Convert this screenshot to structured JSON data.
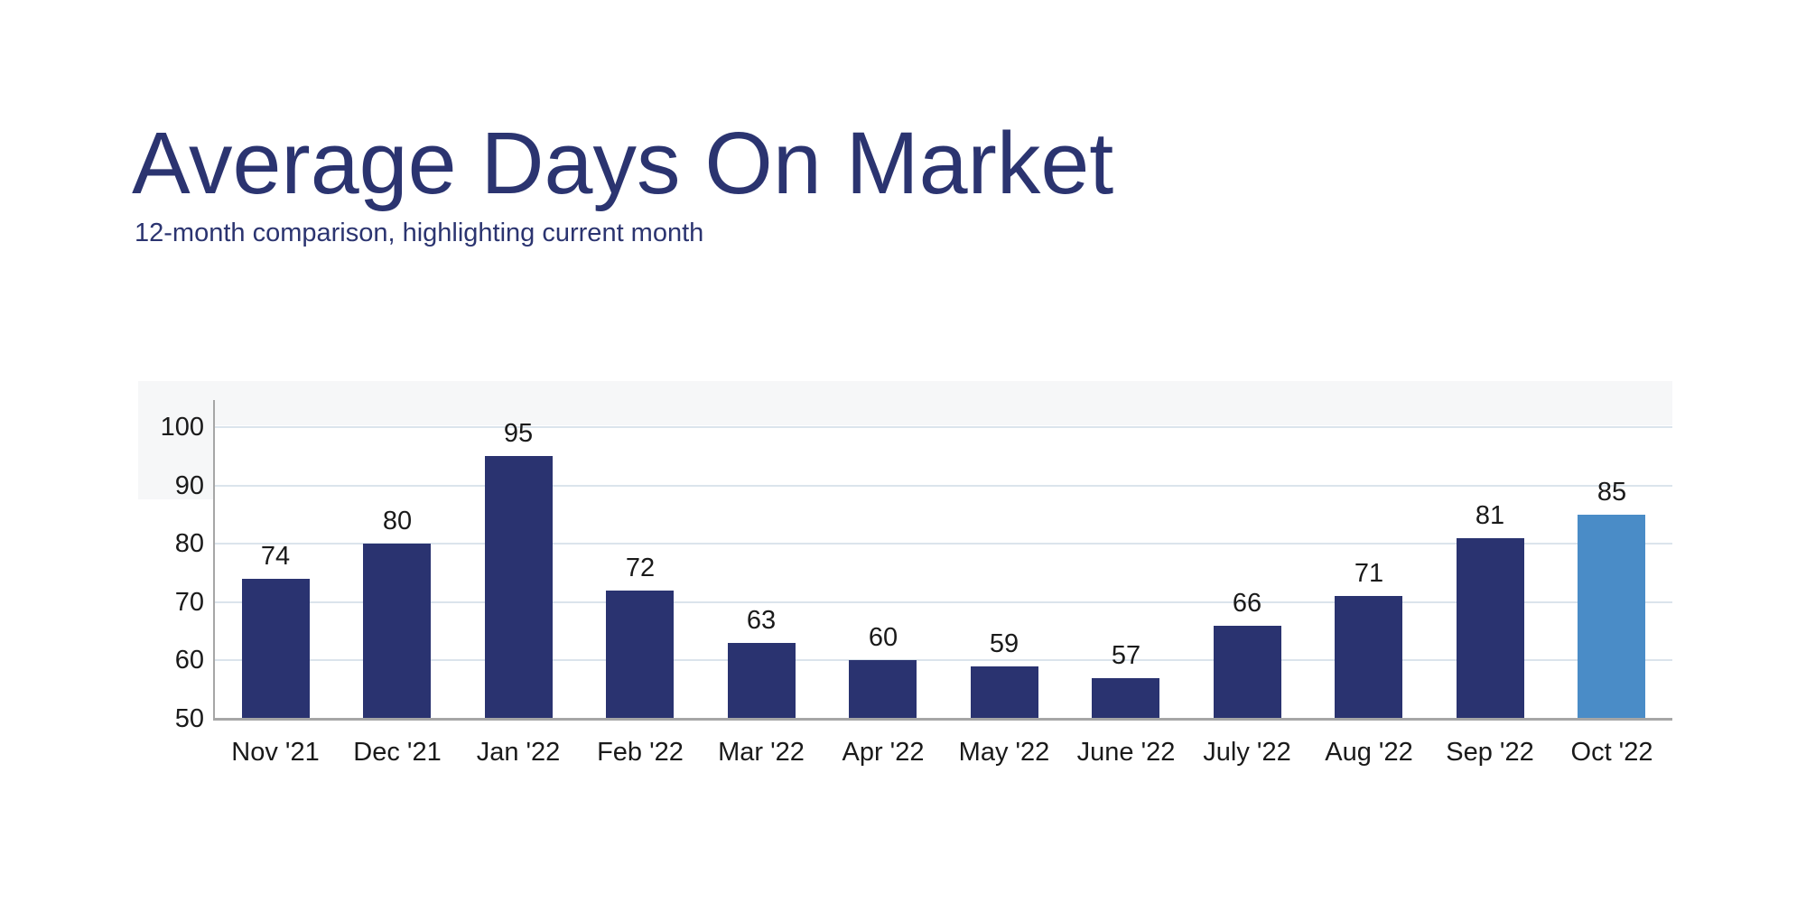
{
  "chart_data": {
    "type": "bar",
    "title": "Average Days On Market",
    "subtitle": "12-month comparison, highlighting current month",
    "categories": [
      "Nov '21",
      "Dec '21",
      "Jan '22",
      "Feb '22",
      "Mar '22",
      "Apr '22",
      "May '22",
      "June '22",
      "July '22",
      "Aug '22",
      "Sep '22",
      "Oct '22"
    ],
    "values": [
      74,
      80,
      95,
      72,
      63,
      60,
      59,
      57,
      66,
      71,
      81,
      85
    ],
    "highlight_index": 11,
    "highlight_category": "Oct '22",
    "xlabel": "",
    "ylabel": "",
    "ylim": [
      50,
      100
    ],
    "yticks": [
      50,
      60,
      70,
      80,
      90,
      100
    ],
    "grid": true,
    "legend": false,
    "colors": {
      "bar": "#2a3370",
      "highlight": "#4a8cc7",
      "gridline": "#dbe4ec",
      "axis": "#a6a6a6",
      "label": "#1a1a1a",
      "title": "#2b3470"
    }
  }
}
